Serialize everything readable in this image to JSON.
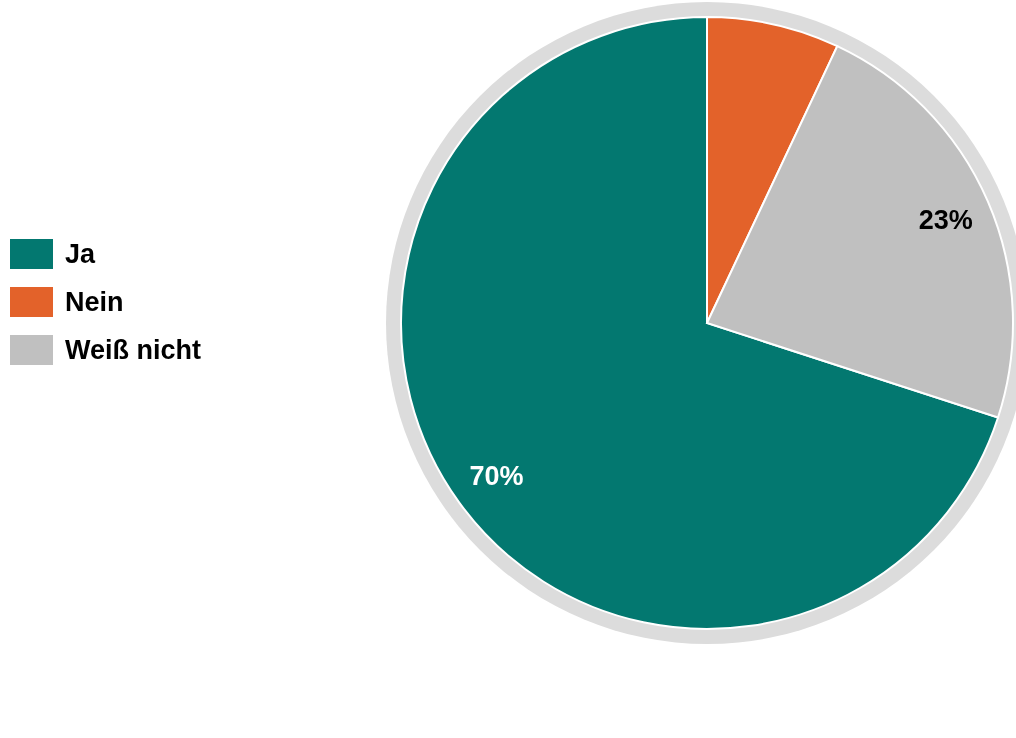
{
  "chart_data": {
    "type": "pie",
    "categories": [
      "Ja",
      "Nein",
      "Weiß nicht"
    ],
    "values": [
      70,
      7,
      23
    ],
    "colors": [
      "#037870",
      "#e3622a",
      "#c0c0c0"
    ],
    "value_labels": [
      "70%",
      null,
      "23%"
    ],
    "legend": "left"
  }
}
